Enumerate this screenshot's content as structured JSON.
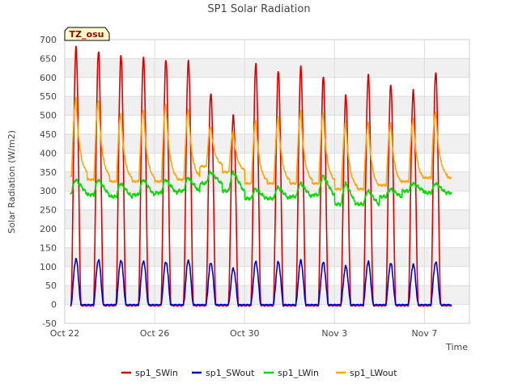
{
  "chart_data": {
    "type": "line",
    "title": "SP1 Solar Radiation",
    "xlabel": "Time",
    "ylabel": "Solar Radiation (W/m2)",
    "badge": "TZ_osu",
    "ylim": [
      -50,
      700
    ],
    "yticks": [
      -50,
      0,
      50,
      100,
      150,
      200,
      250,
      300,
      350,
      400,
      450,
      500,
      550,
      600,
      650,
      700
    ],
    "xlim_days": [
      0,
      18
    ],
    "xticks": [
      {
        "day": 0,
        "label": "Oct 22"
      },
      {
        "day": 4,
        "label": "Oct 26"
      },
      {
        "day": 8,
        "label": "Oct 30"
      },
      {
        "day": 12,
        "label": "Nov 3"
      },
      {
        "day": 16,
        "label": "Nov 7"
      }
    ],
    "grid": true,
    "legend_position": "bottom",
    "series": [
      {
        "name": "sp1_SWin",
        "color": "#dd0000",
        "daily_peaks": [
          680,
          670,
          660,
          655,
          650,
          645,
          560,
          500,
          635,
          615,
          625,
          600,
          550,
          605,
          580,
          565,
          615
        ]
      },
      {
        "name": "sp1_SWout",
        "color": "#0000cc",
        "daily_peaks": [
          120,
          118,
          117,
          115,
          113,
          117,
          110,
          95,
          113,
          112,
          115,
          110,
          100,
          112,
          108,
          105,
          112
        ]
      },
      {
        "name": "sp1_LWin",
        "color": "#00dd00",
        "daily_peaks": [
          330,
          330,
          320,
          330,
          330,
          335,
          350,
          350,
          305,
          310,
          320,
          340,
          320,
          300,
          305,
          320,
          320
        ],
        "daily_base": [
          295,
          290,
          285,
          290,
          295,
          300,
          320,
          300,
          280,
          280,
          285,
          290,
          265,
          265,
          285,
          300,
          295
        ]
      },
      {
        "name": "sp1_LWout",
        "color": "#ffa500",
        "daily_peaks": [
          545,
          540,
          505,
          515,
          530,
          515,
          470,
          455,
          485,
          495,
          510,
          505,
          480,
          480,
          480,
          490,
          510
        ],
        "daily_base": [
          340,
          330,
          325,
          325,
          325,
          330,
          365,
          350,
          320,
          320,
          320,
          320,
          305,
          305,
          315,
          325,
          335
        ]
      }
    ]
  }
}
